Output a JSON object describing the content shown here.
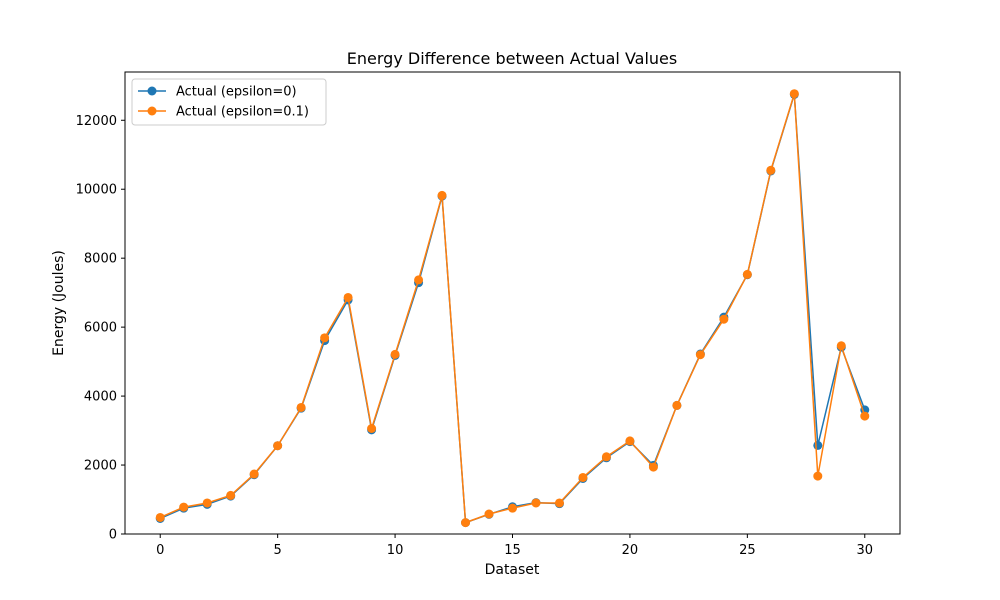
{
  "chart_data": {
    "type": "line",
    "title": "Energy Difference between Actual Values",
    "xlabel": "Dataset",
    "ylabel": "Energy (Joules)",
    "xlim": [
      -1.5,
      31.5
    ],
    "ylim": [
      0,
      13400
    ],
    "xticks": [
      0,
      5,
      10,
      15,
      20,
      25,
      30
    ],
    "yticks": [
      0,
      2000,
      4000,
      6000,
      8000,
      10000,
      12000
    ],
    "grid": false,
    "legend_position": "top-left",
    "x": [
      0,
      1,
      2,
      3,
      4,
      5,
      6,
      7,
      8,
      9,
      10,
      11,
      12,
      13,
      14,
      15,
      16,
      17,
      18,
      19,
      20,
      21,
      22,
      23,
      24,
      25,
      26,
      27,
      28,
      29,
      30
    ],
    "series": [
      {
        "name": "Actual (epsilon=0)",
        "color": "#1f77b4",
        "values": [
          450,
          750,
          860,
          1100,
          1720,
          2560,
          3650,
          5610,
          6790,
          3020,
          5180,
          7290,
          9800,
          330,
          570,
          790,
          910,
          880,
          1610,
          2210,
          2680,
          1990,
          3730,
          5220,
          6290,
          7520,
          10530,
          12750,
          2570,
          5420,
          3600
        ]
      },
      {
        "name": "Actual (epsilon=0.1)",
        "color": "#ff7f0e",
        "values": [
          480,
          780,
          900,
          1120,
          1740,
          2560,
          3670,
          5690,
          6860,
          3060,
          5210,
          7370,
          9820,
          330,
          580,
          750,
          900,
          900,
          1640,
          2240,
          2700,
          1940,
          3730,
          5200,
          6230,
          7530,
          10550,
          12770,
          1680,
          5460,
          3420
        ]
      }
    ]
  }
}
